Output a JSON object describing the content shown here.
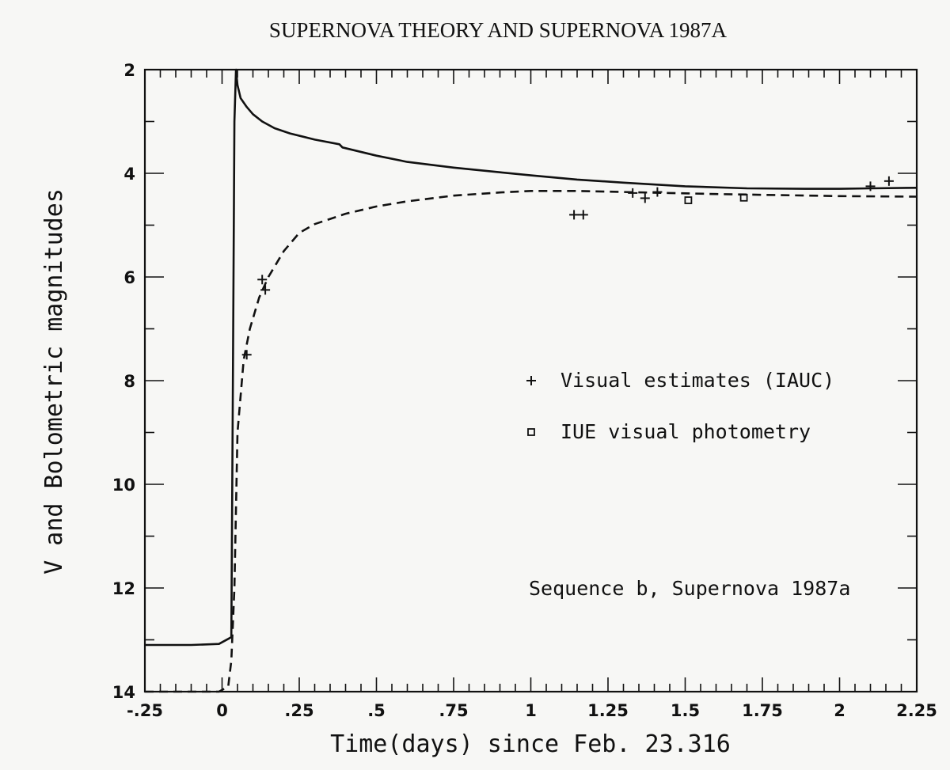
{
  "page_title": "SUPERNOVA THEORY AND SUPERNOVA 1987A",
  "chart_data": {
    "type": "line",
    "xlabel": "Time(days) since Feb. 23.316",
    "ylabel": "V and Bolometric magnitudes",
    "xlim": [
      -0.25,
      2.25
    ],
    "ylim": [
      14,
      2
    ],
    "y_inverted": true,
    "x_tick_labels": [
      "-.25",
      "0",
      ".25",
      ".5",
      ".75",
      "1",
      "1.25",
      "1.5",
      "1.75",
      "2",
      "2.25"
    ],
    "x_tick_values": [
      -0.25,
      0,
      0.25,
      0.5,
      0.75,
      1,
      1.25,
      1.5,
      1.75,
      2,
      2.25
    ],
    "y_tick_labels": [
      "2",
      "4",
      "6",
      "8",
      "10",
      "12",
      "14"
    ],
    "y_tick_values": [
      2,
      4,
      6,
      8,
      10,
      12,
      14
    ],
    "grid": false,
    "legend_position": "right",
    "series": [
      {
        "style": "solid",
        "x": [
          -0.25,
          -0.2,
          -0.1,
          -0.01,
          0.03,
          0.035,
          0.04,
          0.045,
          0.05,
          0.06,
          0.08,
          0.1,
          0.13,
          0.17,
          0.22,
          0.3,
          0.38,
          0.39,
          0.5,
          0.6,
          0.75,
          0.9,
          1.0,
          1.15,
          1.3,
          1.5,
          1.7,
          1.9,
          2.0,
          2.1,
          2.25
        ],
        "y": [
          13.1,
          13.1,
          13.1,
          13.08,
          12.95,
          8.0,
          3.0,
          2.0,
          2.3,
          2.55,
          2.72,
          2.86,
          3.0,
          3.13,
          3.23,
          3.35,
          3.44,
          3.5,
          3.66,
          3.78,
          3.89,
          3.98,
          4.04,
          4.12,
          4.18,
          4.25,
          4.29,
          4.3,
          4.3,
          4.29,
          4.28
        ]
      },
      {
        "style": "dashed",
        "x": [
          -0.25,
          -0.1,
          -0.01,
          0.02,
          0.03,
          0.04,
          0.05,
          0.07,
          0.09,
          0.12,
          0.15,
          0.2,
          0.25,
          0.3,
          0.4,
          0.5,
          0.6,
          0.75,
          0.9,
          1.0,
          1.15,
          1.3,
          1.45,
          1.6,
          1.8,
          2.0,
          2.25
        ],
        "y": [
          14.0,
          14.0,
          14.0,
          13.9,
          13.4,
          12.0,
          9.0,
          7.6,
          7.0,
          6.4,
          6.0,
          5.5,
          5.15,
          4.98,
          4.78,
          4.64,
          4.54,
          4.43,
          4.37,
          4.34,
          4.34,
          4.36,
          4.38,
          4.4,
          4.42,
          4.44,
          4.45
        ]
      }
    ],
    "markers": [
      {
        "name": "Visual estimates (IAUC)",
        "symbol": "plus",
        "points": [
          [
            0.08,
            7.5
          ],
          [
            0.13,
            6.05
          ],
          [
            0.14,
            6.25
          ],
          [
            1.14,
            4.8
          ],
          [
            1.17,
            4.8
          ],
          [
            1.33,
            4.38
          ],
          [
            1.37,
            4.48
          ],
          [
            1.41,
            4.36
          ],
          [
            2.1,
            4.25
          ],
          [
            2.16,
            4.15
          ]
        ]
      },
      {
        "name": "IUE visual photometry",
        "symbol": "square",
        "points": [
          [
            1.51,
            4.52
          ],
          [
            1.69,
            4.47
          ]
        ]
      }
    ],
    "annotation": "Sequence b, Supernova 1987a"
  }
}
